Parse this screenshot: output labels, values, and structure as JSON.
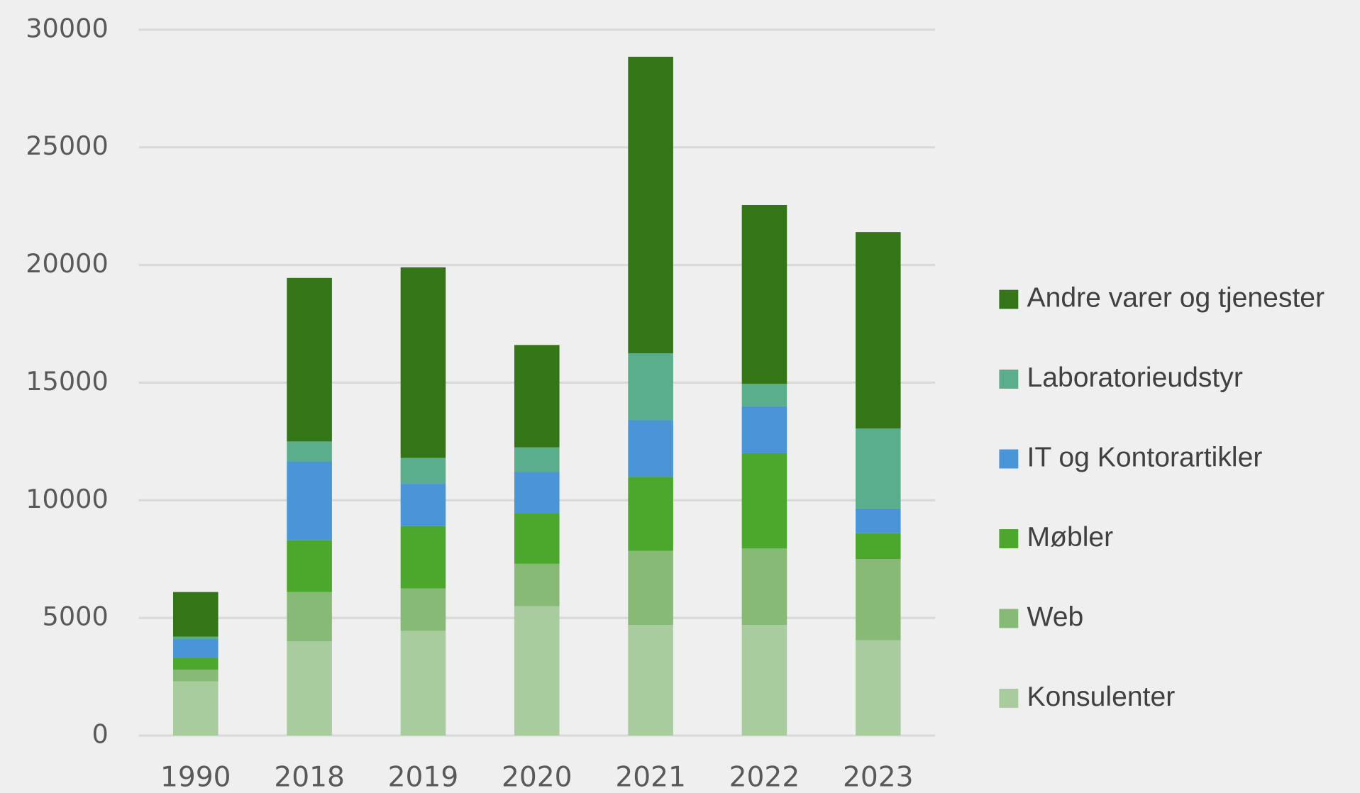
{
  "chart_data": {
    "type": "stacked_bar",
    "categories": [
      "1990",
      "2018",
      "2019",
      "2020",
      "2021",
      "2022",
      "2023"
    ],
    "series": [
      {
        "name": "Konsulenter",
        "color": "#a9cc9f",
        "values": [
          2300,
          4000,
          4450,
          5500,
          4700,
          4700,
          4050
        ]
      },
      {
        "name": "Web",
        "color": "#86ba76",
        "values": [
          500,
          2100,
          1800,
          1800,
          3150,
          3250,
          3450
        ]
      },
      {
        "name": "Møbler",
        "color": "#4ca72d",
        "values": [
          500,
          2200,
          2650,
          2150,
          3150,
          4050,
          1100
        ]
      },
      {
        "name": "IT og Kontorartikler",
        "color": "#4a94d8",
        "values": [
          800,
          3350,
          1800,
          1750,
          2400,
          2000,
          1050
        ]
      },
      {
        "name": "Laboratorieudstyr",
        "color": "#5bae8b",
        "values": [
          100,
          850,
          1100,
          1050,
          2850,
          950,
          3400
        ]
      },
      {
        "name": "Andre varer og tjenester",
        "color": "#347518",
        "values": [
          1900,
          6950,
          8100,
          4350,
          12600,
          7600,
          8350
        ]
      }
    ],
    "ylim": [
      0,
      30000
    ],
    "yticks": [
      0,
      5000,
      10000,
      15000,
      20000,
      25000,
      30000
    ],
    "grid": true,
    "legend": "right"
  }
}
